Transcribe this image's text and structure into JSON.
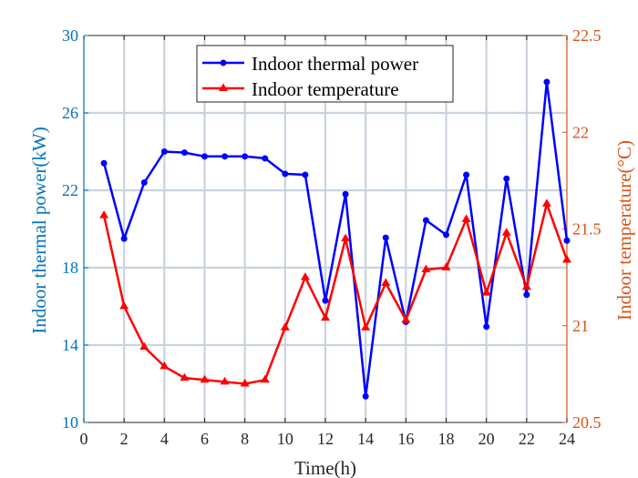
{
  "chart_data": {
    "type": "line",
    "xlabel": "Time(h)",
    "ylabel_left": "Indoor thermal power(kW)",
    "ylabel_right": "Indoor temperature(°C)",
    "xlim": [
      0,
      24
    ],
    "ylim_left": [
      10,
      30
    ],
    "ylim_right": [
      20.5,
      22.5
    ],
    "x_ticks": [
      0,
      2,
      4,
      6,
      8,
      10,
      12,
      14,
      16,
      18,
      20,
      22,
      24
    ],
    "y_left_ticks": [
      10,
      14,
      18,
      22,
      26,
      30
    ],
    "y_right_ticks": [
      20.5,
      21,
      21.5,
      22,
      22.5
    ],
    "grid": true,
    "legend_position": "top-center",
    "x": [
      1,
      2,
      3,
      4,
      5,
      6,
      7,
      8,
      9,
      10,
      11,
      12,
      13,
      14,
      15,
      16,
      17,
      18,
      19,
      20,
      21,
      22,
      23,
      24
    ],
    "series": [
      {
        "name": "Indoor thermal power",
        "axis": "left",
        "color": "#0000ff",
        "marker": "circle",
        "values": [
          23.4,
          19.5,
          22.4,
          24.0,
          23.95,
          23.75,
          23.75,
          23.75,
          23.65,
          22.85,
          22.8,
          16.3,
          21.8,
          11.35,
          19.55,
          15.2,
          20.45,
          19.7,
          22.8,
          14.95,
          22.6,
          16.6,
          27.6,
          19.4
        ]
      },
      {
        "name": "Indoor temperature",
        "axis": "right",
        "color": "#ff0000",
        "marker": "triangle",
        "values": [
          21.57,
          21.1,
          20.89,
          20.79,
          20.73,
          20.72,
          20.71,
          20.7,
          20.72,
          20.99,
          21.25,
          21.04,
          21.45,
          20.99,
          21.22,
          21.03,
          21.29,
          21.3,
          21.55,
          21.17,
          21.48,
          21.2,
          21.63,
          21.34
        ]
      }
    ]
  },
  "colors": {
    "left_axis": "#0072bd",
    "right_axis": "#d95319",
    "grid": "#c9d3df",
    "axes_box": "#262626"
  }
}
